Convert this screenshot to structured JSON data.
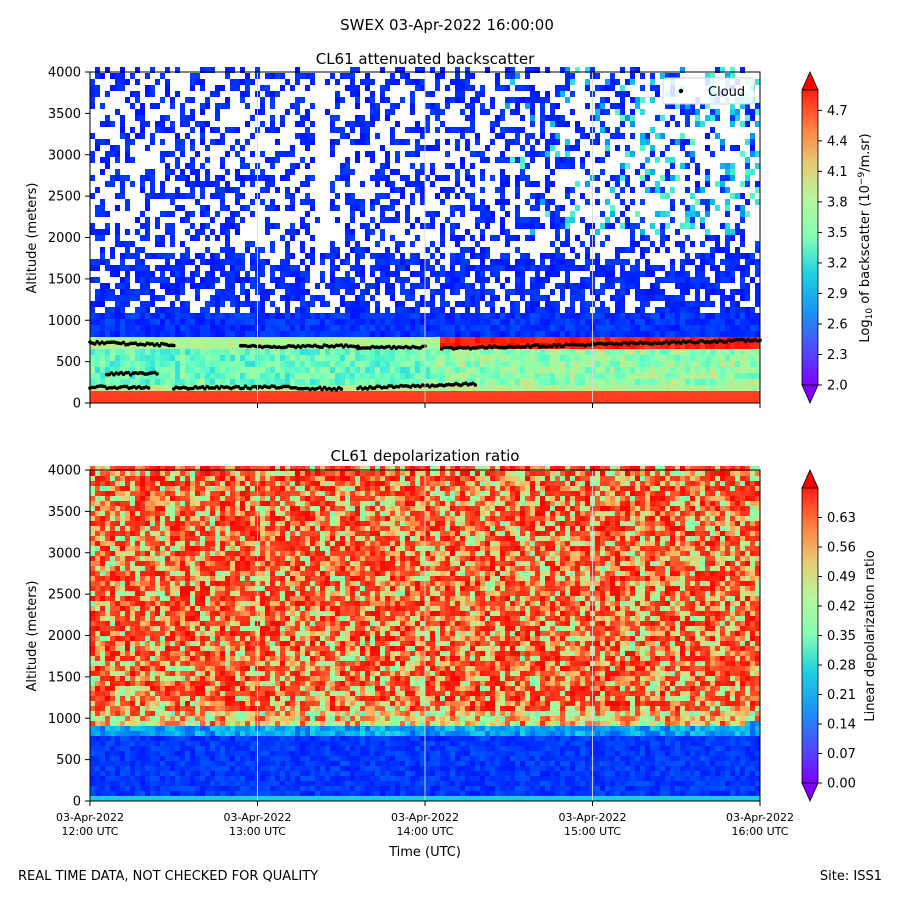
{
  "figure": {
    "title": "SWEX 03-Apr-2022 16:00:00",
    "disclaimer": "REAL TIME DATA, NOT CHECKED FOR QUALITY",
    "site": "Site: ISS1"
  },
  "chart_data": [
    {
      "type": "heatmap",
      "title": "CL61 attenuated backscatter",
      "xlabel": "",
      "ylabel": "Altitude (meters)",
      "ylim": [
        0,
        4000
      ],
      "yticks": [
        "0",
        "500",
        "1000",
        "1500",
        "2000",
        "2500",
        "3000",
        "3500",
        "4000"
      ],
      "xlim_hours_utc": [
        12,
        16
      ],
      "xticks": [
        "",
        "",
        "",
        "",
        ""
      ],
      "colorbar": {
        "label_prefix": "Log",
        "label_sub": "10",
        "label_mid": " of backscatter (10",
        "label_sup": "−9",
        "label_suffix": "/m.sr)",
        "range": [
          2.0,
          4.9
        ],
        "ticks": [
          "2.0",
          "2.3",
          "2.6",
          "2.9",
          "3.2",
          "3.5",
          "3.8",
          "4.1",
          "4.4",
          "4.7"
        ]
      },
      "legend": {
        "marker": "black dot",
        "label": "Cloud",
        "location": "top-right"
      },
      "cloud_layers": [
        {
          "hours": [
            12.0,
            12.5
          ],
          "altitude_m": [
            730,
            700
          ]
        },
        {
          "hours": [
            12.9,
            13.6
          ],
          "altitude_m": [
            680,
            690
          ]
        },
        {
          "hours": [
            13.6,
            14.0
          ],
          "altitude_m": [
            670,
            680
          ]
        },
        {
          "hours": [
            14.1,
            16.0
          ],
          "altitude_m": [
            660,
            760
          ]
        },
        {
          "hours": [
            12.0,
            12.35
          ],
          "altitude_m": [
            190,
            190
          ]
        },
        {
          "hours": [
            12.5,
            13.0
          ],
          "altitude_m": [
            180,
            190
          ]
        },
        {
          "hours": [
            13.0,
            13.5
          ],
          "altitude_m": [
            195,
            170
          ]
        },
        {
          "hours": [
            13.6,
            14.3
          ],
          "altitude_m": [
            180,
            230
          ]
        },
        {
          "hours": [
            12.1,
            12.4
          ],
          "altitude_m": [
            350,
            360
          ]
        }
      ]
    },
    {
      "type": "heatmap",
      "title": "CL61 depolarization ratio",
      "xlabel": "Time (UTC)",
      "ylabel": "Altitude (meters)",
      "ylim": [
        0,
        4000
      ],
      "yticks": [
        "0",
        "500",
        "1000",
        "1500",
        "2000",
        "2500",
        "3000",
        "3500",
        "4000"
      ],
      "xlim_hours_utc": [
        12,
        16
      ],
      "xticks": [
        [
          "03-Apr-2022",
          "12:00 UTC"
        ],
        [
          "03-Apr-2022",
          "13:00 UTC"
        ],
        [
          "03-Apr-2022",
          "14:00 UTC"
        ],
        [
          "03-Apr-2022",
          "15:00 UTC"
        ],
        [
          "03-Apr-2022",
          "16:00 UTC"
        ]
      ],
      "colorbar": {
        "label": "Linear depolarization ratio",
        "range": [
          0.0,
          0.7
        ],
        "ticks": [
          "0.00",
          "0.07",
          "0.14",
          "0.21",
          "0.28",
          "0.35",
          "0.42",
          "0.49",
          "0.56",
          "0.63"
        ]
      }
    }
  ]
}
